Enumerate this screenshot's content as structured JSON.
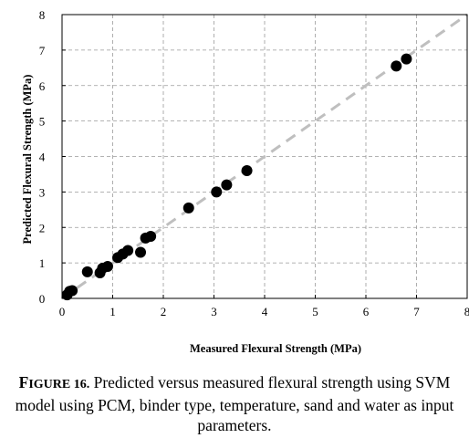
{
  "chart_data": {
    "type": "scatter",
    "xlabel": "Measured Flexural Strength (MPa)",
    "ylabel": "Predicted Flexural Strength (MPa)",
    "xlim": [
      0,
      8
    ],
    "ylim": [
      0,
      8
    ],
    "xticks": [
      "0",
      "1",
      "2",
      "3",
      "4",
      "5",
      "6",
      "7",
      "8"
    ],
    "yticks": [
      "0",
      "1",
      "2",
      "3",
      "4",
      "5",
      "6",
      "7",
      "8"
    ],
    "grid": true,
    "grid_style": "dashed",
    "reference_line": {
      "style": "dashed",
      "color": "#bfbfbf",
      "from": [
        0,
        0
      ],
      "to": [
        8,
        8
      ]
    },
    "marker_color": "#000000",
    "points": [
      {
        "x": 0.1,
        "y": 0.1
      },
      {
        "x": 0.15,
        "y": 0.2
      },
      {
        "x": 0.2,
        "y": 0.22
      },
      {
        "x": 0.5,
        "y": 0.75
      },
      {
        "x": 0.75,
        "y": 0.72
      },
      {
        "x": 0.8,
        "y": 0.85
      },
      {
        "x": 0.9,
        "y": 0.9
      },
      {
        "x": 1.1,
        "y": 1.15
      },
      {
        "x": 1.2,
        "y": 1.25
      },
      {
        "x": 1.3,
        "y": 1.35
      },
      {
        "x": 1.55,
        "y": 1.3
      },
      {
        "x": 1.65,
        "y": 1.7
      },
      {
        "x": 1.75,
        "y": 1.75
      },
      {
        "x": 2.5,
        "y": 2.55
      },
      {
        "x": 3.05,
        "y": 3.0
      },
      {
        "x": 3.25,
        "y": 3.2
      },
      {
        "x": 3.65,
        "y": 3.6
      },
      {
        "x": 6.6,
        "y": 6.55
      },
      {
        "x": 6.8,
        "y": 6.75
      }
    ]
  },
  "caption": {
    "label_first": "F",
    "label_rest": "IGURE 16.",
    "text": " Predicted versus measured flexural strength using SVM model using PCM, binder type, temperature, sand and water as input parameters."
  }
}
